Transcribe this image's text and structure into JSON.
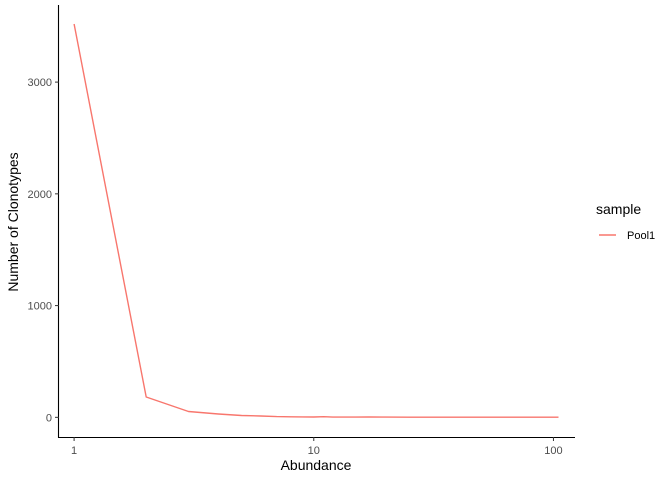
{
  "chart_data": {
    "type": "line",
    "title": "",
    "xlabel": "Abundance",
    "ylabel": "Number of Clonotypes",
    "x_scale": "log10",
    "xlim": [
      0.865,
      123
    ],
    "ylim": [
      -176,
      3690
    ],
    "x_ticks": [
      1,
      10,
      100
    ],
    "x_tick_labels": [
      "1",
      "10",
      "100"
    ],
    "y_ticks": [
      0,
      1000,
      2000,
      3000
    ],
    "y_tick_labels": [
      "0",
      "1000",
      "2000",
      "3000"
    ],
    "grid": false,
    "legend": {
      "title": "sample",
      "position": "right"
    },
    "series": [
      {
        "name": "Pool1",
        "color": "#F8766D",
        "x": [
          1,
          2,
          3,
          4,
          5,
          6,
          7,
          8,
          9,
          10,
          11,
          12,
          13,
          15,
          17,
          20,
          25,
          30,
          40,
          50,
          60,
          80,
          100,
          105
        ],
        "y": [
          3520,
          182,
          52,
          30,
          16,
          12,
          7,
          5,
          4,
          3,
          6,
          2,
          2,
          2,
          3,
          2,
          1,
          1,
          1,
          1,
          1,
          1,
          1,
          1
        ]
      }
    ]
  }
}
